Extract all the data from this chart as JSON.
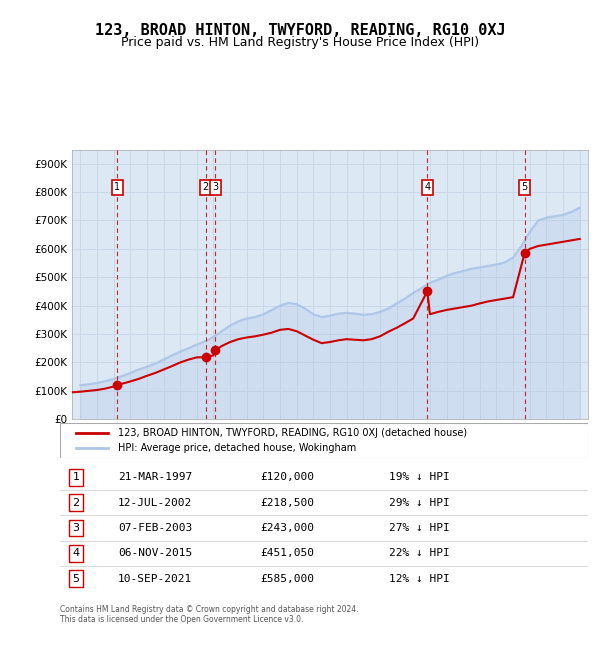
{
  "title": "123, BROAD HINTON, TWYFORD, READING, RG10 0XJ",
  "subtitle": "Price paid vs. HM Land Registry's House Price Index (HPI)",
  "legend_line1": "123, BROAD HINTON, TWYFORD, READING, RG10 0XJ (detached house)",
  "legend_line2": "HPI: Average price, detached house, Wokingham",
  "footer": "Contains HM Land Registry data © Crown copyright and database right 2024.\nThis data is licensed under the Open Government Licence v3.0.",
  "sale_points": [
    {
      "num": 1,
      "date": "21-MAR-1997",
      "price": 120000,
      "pct": "19%",
      "x": 1997.22
    },
    {
      "num": 2,
      "date": "12-JUL-2002",
      "price": 218500,
      "pct": "29%",
      "x": 2002.53
    },
    {
      "num": 3,
      "date": "07-FEB-2003",
      "price": 243000,
      "pct": "27%",
      "x": 2003.1
    },
    {
      "num": 4,
      "date": "06-NOV-2015",
      "price": 451050,
      "pct": "22%",
      "x": 2015.85
    },
    {
      "num": 5,
      "date": "10-SEP-2021",
      "price": 585000,
      "pct": "12%",
      "x": 2021.69
    }
  ],
  "xlim": [
    1994.5,
    2025.5
  ],
  "ylim": [
    0,
    950000
  ],
  "yticks": [
    0,
    100000,
    200000,
    300000,
    400000,
    500000,
    600000,
    700000,
    800000,
    900000
  ],
  "ytick_labels": [
    "£0",
    "£100K",
    "£200K",
    "£300K",
    "£400K",
    "£500K",
    "£600K",
    "£700K",
    "£800K",
    "£900K"
  ],
  "xticks": [
    1995,
    1996,
    1997,
    1998,
    1999,
    2000,
    2001,
    2002,
    2003,
    2004,
    2005,
    2006,
    2007,
    2008,
    2009,
    2010,
    2011,
    2012,
    2013,
    2014,
    2015,
    2016,
    2017,
    2018,
    2019,
    2020,
    2021,
    2022,
    2023,
    2024,
    2025
  ],
  "hpi_color": "#aec6e8",
  "price_color": "#cc0000",
  "sale_marker_color": "#cc0000",
  "box_color": "#cc0000",
  "grid_color": "#c8d8e8",
  "bg_color": "#dce8f4",
  "hpi_data_x": [
    1995,
    1995.5,
    1996,
    1996.5,
    1997,
    1997.5,
    1998,
    1998.5,
    1999,
    1999.5,
    2000,
    2000.5,
    2001,
    2001.5,
    2002,
    2002.5,
    2003,
    2003.5,
    2004,
    2004.5,
    2005,
    2005.5,
    2006,
    2006.5,
    2007,
    2007.5,
    2008,
    2008.5,
    2009,
    2009.5,
    2010,
    2010.5,
    2011,
    2011.5,
    2012,
    2012.5,
    2013,
    2013.5,
    2014,
    2014.5,
    2015,
    2015.5,
    2016,
    2016.5,
    2017,
    2017.5,
    2018,
    2018.5,
    2019,
    2019.5,
    2020,
    2020.5,
    2021,
    2021.5,
    2022,
    2022.5,
    2023,
    2023.5,
    2024,
    2024.5,
    2025
  ],
  "hpi_data_y": [
    120000,
    123000,
    128000,
    134000,
    142000,
    152000,
    163000,
    175000,
    185000,
    196000,
    210000,
    225000,
    238000,
    250000,
    263000,
    275000,
    290000,
    310000,
    330000,
    345000,
    355000,
    360000,
    370000,
    385000,
    400000,
    410000,
    405000,
    390000,
    370000,
    360000,
    365000,
    372000,
    375000,
    372000,
    368000,
    370000,
    378000,
    390000,
    408000,
    425000,
    445000,
    462000,
    480000,
    492000,
    505000,
    515000,
    522000,
    530000,
    535000,
    540000,
    545000,
    552000,
    570000,
    610000,
    660000,
    700000,
    710000,
    715000,
    720000,
    730000,
    745000
  ],
  "price_data_x": [
    1994.5,
    1995,
    1995.5,
    1996,
    1996.5,
    1997,
    1997.22,
    1997.5,
    1998,
    1998.5,
    1999,
    1999.5,
    2000,
    2000.5,
    2001,
    2001.5,
    2002,
    2002.53,
    2003,
    2003.1,
    2003.5,
    2004,
    2004.5,
    2005,
    2005.5,
    2006,
    2006.5,
    2007,
    2007.5,
    2008,
    2008.5,
    2009,
    2009.5,
    2010,
    2010.5,
    2011,
    2011.5,
    2012,
    2012.5,
    2013,
    2013.5,
    2014,
    2014.5,
    2015,
    2015.85,
    2016,
    2016.5,
    2017,
    2017.5,
    2018,
    2018.5,
    2019,
    2019.5,
    2020,
    2020.5,
    2021,
    2021.69,
    2022,
    2022.5,
    2023,
    2023.5,
    2024,
    2024.5,
    2025
  ],
  "price_data_y": [
    95000,
    97000,
    100000,
    103000,
    108000,
    115000,
    120000,
    125000,
    133000,
    142000,
    153000,
    163000,
    175000,
    187000,
    200000,
    210000,
    218000,
    218500,
    225000,
    243000,
    258000,
    272000,
    282000,
    288000,
    292000,
    298000,
    305000,
    315000,
    318000,
    310000,
    295000,
    280000,
    268000,
    272000,
    278000,
    282000,
    280000,
    278000,
    282000,
    292000,
    308000,
    322000,
    338000,
    355000,
    451050,
    370000,
    378000,
    385000,
    390000,
    395000,
    400000,
    408000,
    415000,
    420000,
    425000,
    430000,
    585000,
    600000,
    610000,
    615000,
    620000,
    625000,
    630000,
    635000
  ]
}
